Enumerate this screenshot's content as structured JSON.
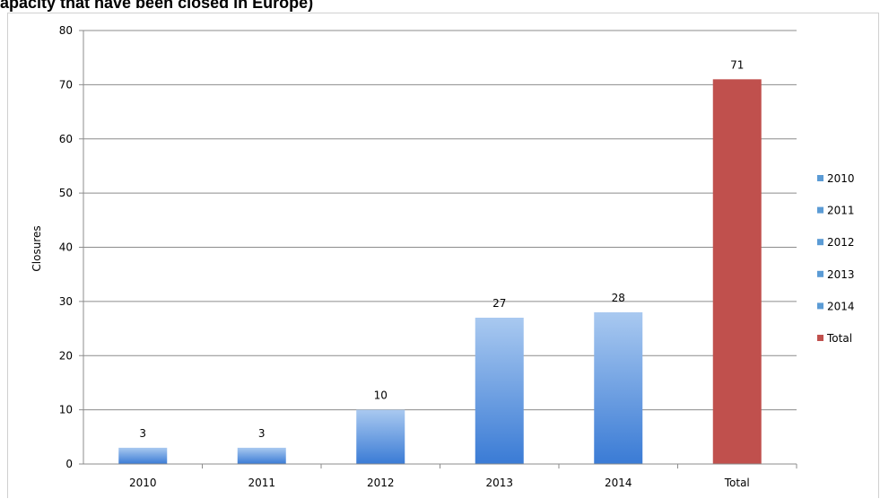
{
  "title": "apacity that have been closed in Europe)",
  "colors": {
    "year_bar": "#5b9bd5",
    "year_bar_light": "#a9c9f0",
    "year_bar_dark": "#3a7bd5",
    "total_bar": "#c0504d",
    "gridline": "#8c8c8c",
    "text": "#000000"
  },
  "chart_data": {
    "type": "bar",
    "categories": [
      "2010",
      "2011",
      "2012",
      "2013",
      "2014",
      "Total"
    ],
    "values": [
      3,
      3,
      10,
      27,
      28,
      71
    ],
    "data_labels": [
      "3",
      "3",
      "10",
      "27",
      "28",
      "71"
    ],
    "title": "apacity that have been closed in Europe)",
    "xlabel": "",
    "ylabel": "Closures",
    "ylim": [
      0,
      80
    ],
    "yticks": [
      0,
      10,
      20,
      30,
      40,
      50,
      60,
      70,
      80
    ],
    "ytick_labels": [
      "0",
      "10",
      "20",
      "30",
      "40",
      "50",
      "60",
      "70",
      "80"
    ],
    "grid": true,
    "legend": {
      "placement": "right",
      "entries": [
        "2010",
        "2011",
        "2012",
        "2013",
        "2014",
        "Total"
      ]
    }
  }
}
